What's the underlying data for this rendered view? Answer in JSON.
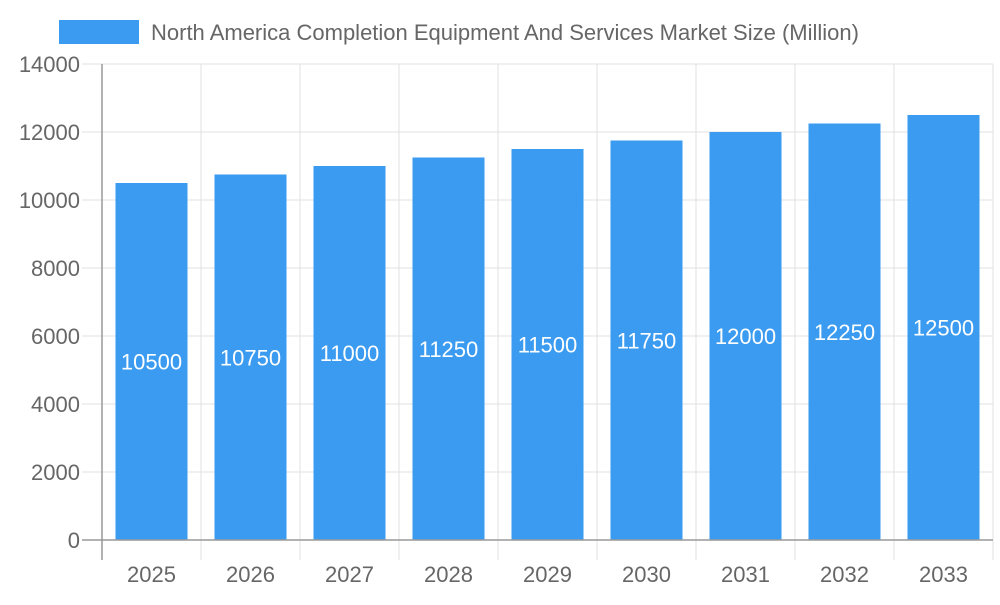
{
  "chart_data": {
    "type": "bar",
    "title": "",
    "xlabel": "",
    "ylabel": "",
    "categories": [
      "2025",
      "2026",
      "2027",
      "2028",
      "2029",
      "2030",
      "2031",
      "2032",
      "2033"
    ],
    "series": [
      {
        "name": "North America Completion Equipment And Services Market Size (Million)",
        "values": [
          10500,
          10750,
          11000,
          11250,
          11500,
          11750,
          12000,
          12250,
          12500
        ]
      }
    ],
    "ylim": [
      0,
      14000
    ],
    "yticks": [
      0,
      2000,
      4000,
      6000,
      8000,
      10000,
      12000,
      14000
    ],
    "grid": true,
    "legend": "top",
    "data_labels": "inside-center",
    "colors": {
      "bar": "#3a9bf0",
      "grid": "#e0e0e0",
      "axis": "#999999",
      "text": "#666666",
      "label": "#ffffff"
    }
  }
}
